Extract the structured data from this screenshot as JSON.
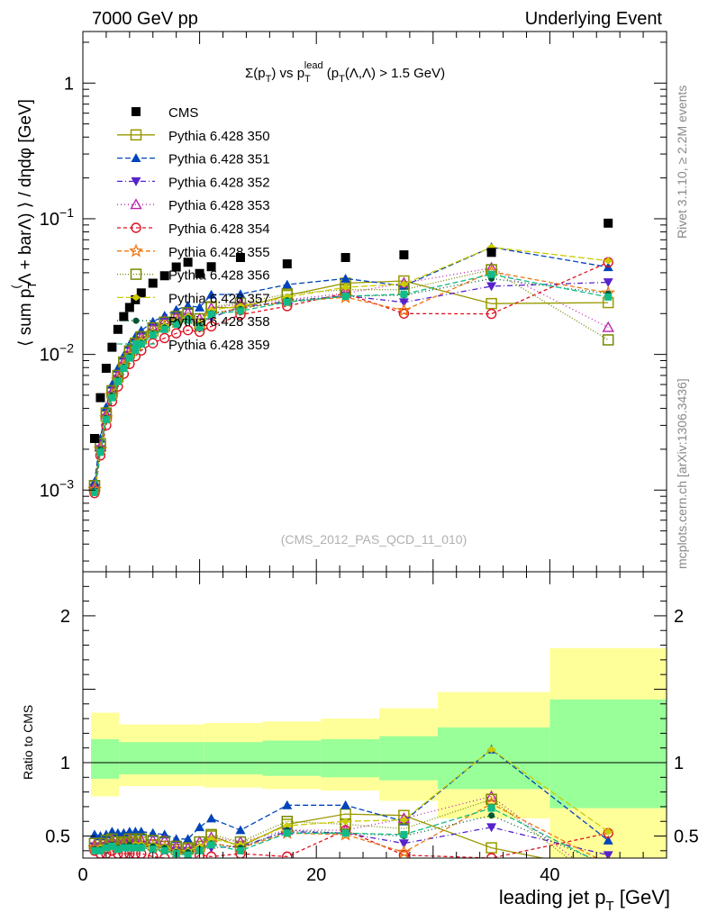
{
  "header": {
    "left": "7000 GeV pp",
    "right": "Underlying Event"
  },
  "side": {
    "rivet": "Rivet 3.1.10, ≥ 2.2M events",
    "mcplots": "mcplots.cern.ch [arXiv:1306.3436]"
  },
  "watermark": "(CMS_2012_PAS_QCD_11_010)",
  "chart_data": {
    "type": "line",
    "title": "Σ(p_T) vs p_T^lead (p_T(Λ,Λ̄) > 1.5 GeV)",
    "title_parts": {
      "sigma": "Σ(p",
      "t1": "T",
      "vs": ") vs p",
      "t2": "T",
      "lead": "lead",
      "rest_a": " (p",
      "t3": "T",
      "rest_b": "(Λ,Λ",
      "rest_c": ") > 1.5 GeV)"
    },
    "xlabel": "leading jet p_T [GeV]",
    "xlabel_parts": {
      "main": "leading jet p",
      "sub": "T",
      "unit": " [GeV]"
    },
    "ylabel": "⟨ sum p_T^(Λ + barΛ) ⟩ / dηdφ [GeV]",
    "ylabel_parts": {
      "a": "⟨ sum p",
      "sub": "T",
      "sup": "(",
      "b": "Λ + barΛ) ⟩ / dηdφ [GeV]"
    },
    "ratio_ylabel": "Ratio to CMS",
    "xlim": [
      0,
      50
    ],
    "ylim": [
      0.00025,
      2.4
    ],
    "ylog": true,
    "ratio_ylim": [
      0.35,
      2.3
    ],
    "xticks": [
      0,
      20,
      40
    ],
    "yticks": [
      {
        "v": 0.001,
        "m": "10",
        "e": "−3"
      },
      {
        "v": 0.01,
        "m": "10",
        "e": "−2"
      },
      {
        "v": 0.1,
        "m": "10",
        "e": "−1"
      },
      {
        "v": 1,
        "m": "1",
        "e": ""
      }
    ],
    "ratio_yticks": [
      0.5,
      1,
      2
    ],
    "legend_position": "top-left",
    "x": [
      1.0,
      1.5,
      2.0,
      2.5,
      3.0,
      3.5,
      4.0,
      4.5,
      5.0,
      6.0,
      7.0,
      8.0,
      9.0,
      10.0,
      11.0,
      13.5,
      17.5,
      22.5,
      27.5,
      35.0,
      45.0
    ],
    "cms": [
      0.0024,
      0.0048,
      0.0079,
      0.0113,
      0.0153,
      0.019,
      0.0222,
      0.0253,
      0.0284,
      0.0335,
      0.038,
      0.0441,
      0.0478,
      0.0395,
      0.0443,
      0.0518,
      0.0465,
      0.0518,
      0.0542,
      0.0565,
      0.0928
    ],
    "bands": [
      {
        "x0": 0.7,
        "x1": 3.1,
        "g": [
          0.89,
          1.16
        ],
        "y": [
          0.77,
          1.34
        ]
      },
      {
        "x0": 3.1,
        "x1": 10.4,
        "g": [
          0.92,
          1.14
        ],
        "y": [
          0.84,
          1.26
        ]
      },
      {
        "x0": 10.4,
        "x1": 15.4,
        "g": [
          0.92,
          1.14
        ],
        "y": [
          0.83,
          1.27
        ]
      },
      {
        "x0": 15.4,
        "x1": 20.4,
        "g": [
          0.91,
          1.15
        ],
        "y": [
          0.82,
          1.28
        ]
      },
      {
        "x0": 20.4,
        "x1": 25.4,
        "g": [
          0.9,
          1.16
        ],
        "y": [
          0.81,
          1.3
        ]
      },
      {
        "x0": 25.4,
        "x1": 30.4,
        "g": [
          0.88,
          1.18
        ],
        "y": [
          0.74,
          1.37
        ]
      },
      {
        "x0": 30.4,
        "x1": 40.0,
        "g": [
          0.82,
          1.24
        ],
        "y": [
          0.62,
          1.48
        ]
      },
      {
        "x0": 40.0,
        "x1": 50.0,
        "g": [
          0.69,
          1.43
        ],
        "y": [
          0.35,
          1.78
        ]
      }
    ],
    "series": [
      {
        "name": "Pythia 6.428 350",
        "color": "#999900",
        "marker": "open-square",
        "dash": "",
        "y": [
          0.00107,
          0.0021,
          0.0035,
          0.0052,
          0.0068,
          0.0086,
          0.0103,
          0.0117,
          0.0131,
          0.0149,
          0.0163,
          0.0181,
          0.0198,
          0.0168,
          0.0222,
          0.0221,
          0.0272,
          0.0335,
          0.0348,
          0.0237,
          0.0241
        ],
        "r": [
          0.45,
          0.44,
          0.44,
          0.46,
          0.44,
          0.45,
          0.46,
          0.46,
          0.46,
          0.44,
          0.43,
          0.41,
          0.41,
          0.43,
          0.5,
          0.43,
          0.58,
          0.65,
          0.64,
          0.42,
          0.26
        ]
      },
      {
        "name": "Pythia 6.428 351",
        "color": "#0044bb",
        "marker": "tri-up",
        "dash": "6,3",
        "y": [
          0.00115,
          0.0024,
          0.0041,
          0.006,
          0.0079,
          0.0098,
          0.0118,
          0.0135,
          0.015,
          0.0174,
          0.0193,
          0.0213,
          0.0229,
          0.0222,
          0.0276,
          0.0278,
          0.0327,
          0.0362,
          0.032,
          0.0617,
          0.044
        ],
        "r": [
          0.51,
          0.5,
          0.51,
          0.53,
          0.52,
          0.52,
          0.53,
          0.53,
          0.53,
          0.52,
          0.51,
          0.48,
          0.48,
          0.56,
          0.62,
          0.54,
          0.71,
          0.71,
          0.6,
          1.09,
          0.47
        ]
      },
      {
        "name": "Pythia 6.428 352",
        "color": "#5522cc",
        "marker": "tri-down",
        "dash": "6,3,1,3",
        "y": [
          0.00102,
          0.002,
          0.0034,
          0.005,
          0.0066,
          0.0082,
          0.0099,
          0.0112,
          0.0126,
          0.0144,
          0.0159,
          0.0176,
          0.0189,
          0.0165,
          0.0187,
          0.0224,
          0.0245,
          0.0271,
          0.0242,
          0.0318,
          0.034
        ],
        "r": [
          0.43,
          0.42,
          0.43,
          0.44,
          0.43,
          0.43,
          0.45,
          0.44,
          0.44,
          0.43,
          0.42,
          0.4,
          0.4,
          0.42,
          0.42,
          0.43,
          0.53,
          0.52,
          0.45,
          0.56,
          0.37
        ]
      },
      {
        "name": "Pythia 6.428 353",
        "color": "#bb22aa",
        "marker": "open-tri-up",
        "dash": "1,3",
        "y": [
          0.00105,
          0.0021,
          0.0036,
          0.0053,
          0.007,
          0.0088,
          0.0106,
          0.012,
          0.0134,
          0.0158,
          0.0177,
          0.0191,
          0.0203,
          0.0183,
          0.0219,
          0.0236,
          0.0253,
          0.0282,
          0.0336,
          0.0434,
          0.0158
        ],
        "r": [
          0.44,
          0.44,
          0.45,
          0.47,
          0.46,
          0.46,
          0.48,
          0.47,
          0.47,
          0.47,
          0.47,
          0.43,
          0.42,
          0.46,
          0.49,
          0.46,
          0.54,
          0.54,
          0.62,
          0.77,
          0.17
        ]
      },
      {
        "name": "Pythia 6.428 354",
        "color": "#dd1122",
        "marker": "open-circle",
        "dash": "4,3",
        "y": [
          0.00095,
          0.0018,
          0.003,
          0.0045,
          0.0058,
          0.0072,
          0.0085,
          0.0097,
          0.0107,
          0.0121,
          0.0132,
          0.0143,
          0.0151,
          0.0147,
          0.0161,
          0.0196,
          0.0227,
          0.0282,
          0.02,
          0.0199,
          0.0478
        ],
        "r": [
          0.4,
          0.38,
          0.38,
          0.4,
          0.38,
          0.38,
          0.38,
          0.38,
          0.38,
          0.36,
          0.35,
          0.32,
          0.32,
          0.37,
          0.36,
          0.38,
          0.36,
          0.54,
          0.37,
          0.35,
          0.52
        ]
      },
      {
        "name": "Pythia 6.428 355",
        "color": "#ee7711",
        "marker": "open-star",
        "dash": "5,3",
        "y": [
          0.00101,
          0.002,
          0.0034,
          0.005,
          0.0065,
          0.0082,
          0.0098,
          0.0111,
          0.0124,
          0.0144,
          0.016,
          0.0173,
          0.0184,
          0.016,
          0.0198,
          0.022,
          0.0244,
          0.0264,
          0.0211,
          0.0407,
          0.0284
        ],
        "r": [
          0.42,
          0.42,
          0.43,
          0.44,
          0.42,
          0.43,
          0.44,
          0.44,
          0.44,
          0.43,
          0.42,
          0.39,
          0.38,
          0.41,
          0.45,
          0.42,
          0.52,
          0.51,
          0.39,
          0.72,
          0.31
        ]
      },
      {
        "name": "Pythia 6.428 356",
        "color": "#778800",
        "marker": "open-square",
        "dash": "1,2",
        "y": [
          0.00108,
          0.0022,
          0.0037,
          0.0054,
          0.007,
          0.0088,
          0.0106,
          0.0121,
          0.0135,
          0.0157,
          0.0173,
          0.019,
          0.0203,
          0.0183,
          0.0224,
          0.0239,
          0.0279,
          0.03,
          0.03,
          0.0421,
          0.0128
        ],
        "r": [
          0.45,
          0.45,
          0.47,
          0.48,
          0.46,
          0.46,
          0.48,
          0.48,
          0.48,
          0.47,
          0.46,
          0.43,
          0.42,
          0.46,
          0.51,
          0.46,
          0.6,
          0.58,
          0.55,
          0.75,
          0.14
        ]
      },
      {
        "name": "Pythia 6.428 357",
        "color": "#cccc00",
        "marker": "filled-diamond",
        "dash": "7,3",
        "y": [
          0.00097,
          0.002,
          0.0034,
          0.005,
          0.0065,
          0.0082,
          0.0098,
          0.0112,
          0.0125,
          0.0146,
          0.0162,
          0.0178,
          0.0191,
          0.017,
          0.0212,
          0.0228,
          0.0265,
          0.0313,
          0.033,
          0.0617,
          0.049
        ],
        "r": [
          0.41,
          0.42,
          0.43,
          0.44,
          0.42,
          0.43,
          0.44,
          0.44,
          0.44,
          0.44,
          0.43,
          0.4,
          0.4,
          0.43,
          0.48,
          0.44,
          0.57,
          0.6,
          0.61,
          1.09,
          0.53
        ]
      },
      {
        "name": "Pythia 6.428 358",
        "color": "#005533",
        "marker": "filled-circle",
        "dash": "1,3",
        "y": [
          0.00099,
          0.002,
          0.0034,
          0.005,
          0.0065,
          0.0081,
          0.0097,
          0.011,
          0.0122,
          0.0143,
          0.0158,
          0.0173,
          0.0185,
          0.0163,
          0.0201,
          0.0216,
          0.025,
          0.0269,
          0.0273,
          0.0362,
          0.028
        ],
        "r": [
          0.41,
          0.41,
          0.43,
          0.44,
          0.42,
          0.43,
          0.44,
          0.43,
          0.43,
          0.43,
          0.42,
          0.39,
          0.39,
          0.41,
          0.45,
          0.42,
          0.54,
          0.52,
          0.5,
          0.64,
          0.3
        ]
      },
      {
        "name": "Pythia 6.428 359",
        "color": "#11bb88",
        "marker": "filled-square",
        "dash": "6,3",
        "y": [
          0.00096,
          0.0019,
          0.0033,
          0.0048,
          0.0063,
          0.0079,
          0.0094,
          0.0107,
          0.0119,
          0.0139,
          0.0153,
          0.0167,
          0.0179,
          0.0158,
          0.0197,
          0.0209,
          0.0243,
          0.0268,
          0.0278,
          0.0389,
          0.0265
        ],
        "r": [
          0.4,
          0.4,
          0.42,
          0.43,
          0.41,
          0.42,
          0.42,
          0.42,
          0.42,
          0.41,
          0.4,
          0.38,
          0.37,
          0.4,
          0.44,
          0.4,
          0.52,
          0.52,
          0.51,
          0.69,
          0.29
        ]
      }
    ]
  }
}
